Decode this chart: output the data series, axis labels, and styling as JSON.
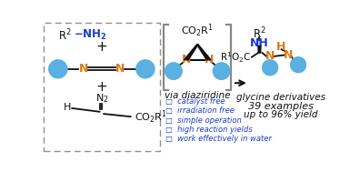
{
  "bg_color": "#ffffff",
  "ball_color": "#5ab0e0",
  "N_color": "#e07818",
  "blue_text": "#1a3dcc",
  "bk": "#111111",
  "bracket_color": "#888888",
  "bullets": [
    "□  catalyst free",
    "□  irradiation free",
    "□  simple operation",
    "□  high reaction yields",
    "□  work effectively in water"
  ],
  "glycine_text": "glycine derivatives",
  "examples_text": "39 examples",
  "yield_text": "up to 96% yield",
  "via_text": "via diaziridine"
}
